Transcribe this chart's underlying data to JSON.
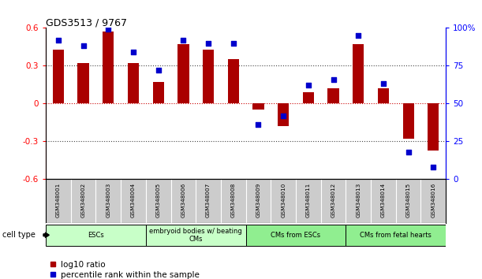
{
  "title": "GDS3513 / 9767",
  "samples": [
    "GSM348001",
    "GSM348002",
    "GSM348003",
    "GSM348004",
    "GSM348005",
    "GSM348006",
    "GSM348007",
    "GSM348008",
    "GSM348009",
    "GSM348010",
    "GSM348011",
    "GSM348012",
    "GSM348013",
    "GSM348014",
    "GSM348015",
    "GSM348016"
  ],
  "log10_ratio": [
    0.43,
    0.32,
    0.57,
    0.32,
    0.17,
    0.47,
    0.43,
    0.35,
    -0.05,
    -0.18,
    0.09,
    0.12,
    0.47,
    0.12,
    -0.28,
    -0.37
  ],
  "percentile_rank": [
    92,
    88,
    99,
    84,
    72,
    92,
    90,
    90,
    36,
    42,
    62,
    66,
    95,
    63,
    18,
    8
  ],
  "ylim_left": [
    -0.6,
    0.6
  ],
  "ylim_right": [
    0,
    100
  ],
  "yticks_left": [
    -0.6,
    -0.3,
    0.0,
    0.3,
    0.6
  ],
  "yticks_right": [
    0,
    25,
    50,
    75,
    100
  ],
  "ytick_labels_right": [
    "0",
    "25",
    "50",
    "75",
    "100%"
  ],
  "bar_color": "#AA0000",
  "dot_color": "#0000CC",
  "zero_line_color": "#CC0000",
  "hline_color": "#444444",
  "cell_groups": [
    {
      "label": "ESCs",
      "start": 0,
      "end": 3
    },
    {
      "label": "embryoid bodies w/ beating\nCMs",
      "start": 4,
      "end": 7
    },
    {
      "label": "CMs from ESCs",
      "start": 8,
      "end": 11
    },
    {
      "label": "CMs from fetal hearts",
      "start": 12,
      "end": 15
    }
  ],
  "group_colors": [
    "#C8FFC8",
    "#C8FFC8",
    "#90EE90",
    "#90EE90"
  ],
  "legend_bar_label": "log10 ratio",
  "legend_dot_label": "percentile rank within the sample",
  "cell_type_label": "cell type",
  "background_color": "#ffffff",
  "label_bg_color": "#CCCCCC"
}
